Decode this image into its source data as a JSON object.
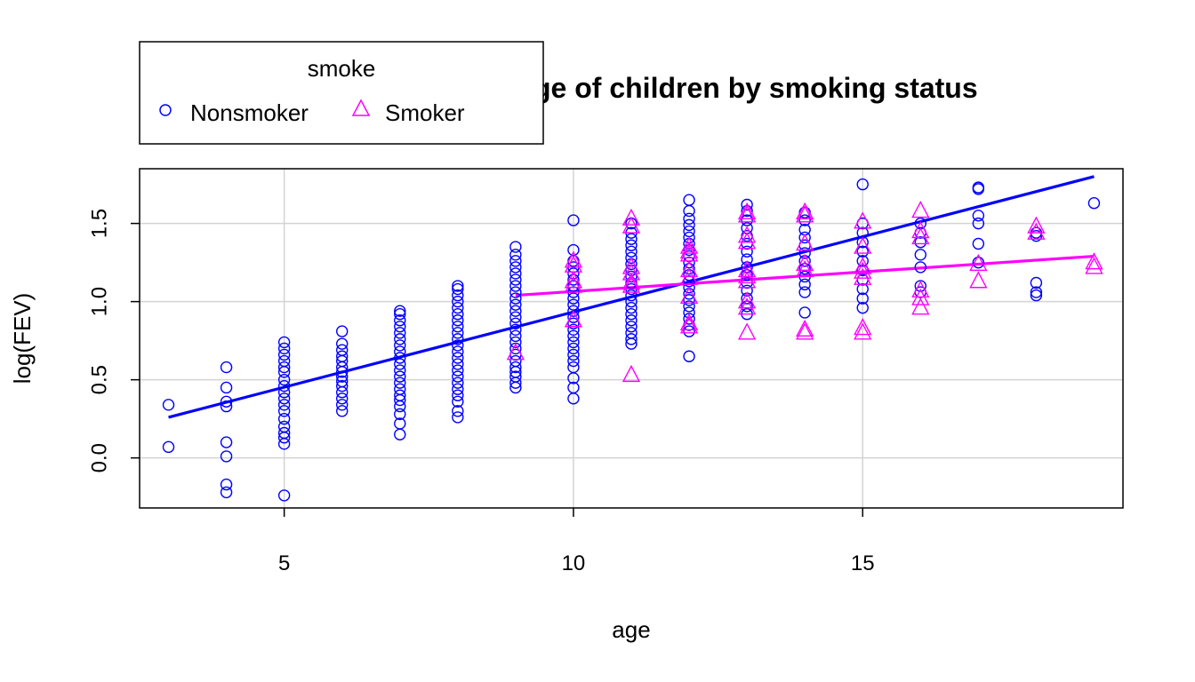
{
  "chart_data": {
    "type": "scatter",
    "title": "ge of children by smoking  status",
    "xlabel": "age",
    "ylabel": "log(FEV)",
    "xlim": [
      2.5,
      19.5
    ],
    "ylim": [
      -0.32,
      1.85
    ],
    "x_ticks": [
      5,
      10,
      15
    ],
    "y_ticks": [
      0.0,
      0.5,
      1.0,
      1.5
    ],
    "x_tick_labels": [
      "5",
      "10",
      "15"
    ],
    "y_tick_labels": [
      "0.0",
      "0.5",
      "1.0",
      "1.5"
    ],
    "grid": true,
    "legend": {
      "title": "smoke",
      "placement": "top-left",
      "entries": [
        "Nonsmoker",
        "Smoker"
      ]
    },
    "series": [
      {
        "name": "Nonsmoker",
        "color": "#0000ff",
        "marker": "circle",
        "fit_line": {
          "x": [
            3,
            19
          ],
          "y": [
            0.26,
            1.8
          ]
        },
        "points": [
          [
            3,
            0.34
          ],
          [
            3,
            0.07
          ],
          [
            4,
            0.58
          ],
          [
            4,
            0.45
          ],
          [
            4,
            0.36
          ],
          [
            4,
            0.33
          ],
          [
            4,
            0.1
          ],
          [
            4,
            0.01
          ],
          [
            4,
            -0.17
          ],
          [
            4,
            -0.22
          ],
          [
            5,
            0.74
          ],
          [
            5,
            0.7
          ],
          [
            5,
            0.66
          ],
          [
            5,
            0.62
          ],
          [
            5,
            0.58
          ],
          [
            5,
            0.55
          ],
          [
            5,
            0.5
          ],
          [
            5,
            0.46
          ],
          [
            5,
            0.42
          ],
          [
            5,
            0.38
          ],
          [
            5,
            0.34
          ],
          [
            5,
            0.3
          ],
          [
            5,
            0.25
          ],
          [
            5,
            0.2
          ],
          [
            5,
            0.16
          ],
          [
            5,
            0.13
          ],
          [
            5,
            0.09
          ],
          [
            5,
            -0.24
          ],
          [
            6,
            0.81
          ],
          [
            6,
            0.73
          ],
          [
            6,
            0.69
          ],
          [
            6,
            0.65
          ],
          [
            6,
            0.62
          ],
          [
            6,
            0.58
          ],
          [
            6,
            0.55
          ],
          [
            6,
            0.52
          ],
          [
            6,
            0.49
          ],
          [
            6,
            0.46
          ],
          [
            6,
            0.42
          ],
          [
            6,
            0.38
          ],
          [
            6,
            0.34
          ],
          [
            6,
            0.3
          ],
          [
            7,
            0.94
          ],
          [
            7,
            0.92
          ],
          [
            7,
            0.88
          ],
          [
            7,
            0.84
          ],
          [
            7,
            0.8
          ],
          [
            7,
            0.76
          ],
          [
            7,
            0.72
          ],
          [
            7,
            0.68
          ],
          [
            7,
            0.64
          ],
          [
            7,
            0.6
          ],
          [
            7,
            0.56
          ],
          [
            7,
            0.52
          ],
          [
            7,
            0.48
          ],
          [
            7,
            0.44
          ],
          [
            7,
            0.4
          ],
          [
            7,
            0.37
          ],
          [
            7,
            0.33
          ],
          [
            7,
            0.28
          ],
          [
            7,
            0.22
          ],
          [
            7,
            0.15
          ],
          [
            8,
            1.1
          ],
          [
            8,
            1.08
          ],
          [
            8,
            1.04
          ],
          [
            8,
            1.0
          ],
          [
            8,
            0.96
          ],
          [
            8,
            0.92
          ],
          [
            8,
            0.88
          ],
          [
            8,
            0.84
          ],
          [
            8,
            0.8
          ],
          [
            8,
            0.76
          ],
          [
            8,
            0.72
          ],
          [
            8,
            0.68
          ],
          [
            8,
            0.64
          ],
          [
            8,
            0.6
          ],
          [
            8,
            0.56
          ],
          [
            8,
            0.52
          ],
          [
            8,
            0.48
          ],
          [
            8,
            0.44
          ],
          [
            8,
            0.4
          ],
          [
            8,
            0.36
          ],
          [
            8,
            0.3
          ],
          [
            8,
            0.26
          ],
          [
            9,
            1.35
          ],
          [
            9,
            1.3
          ],
          [
            9,
            1.26
          ],
          [
            9,
            1.22
          ],
          [
            9,
            1.18
          ],
          [
            9,
            1.14
          ],
          [
            9,
            1.1
          ],
          [
            9,
            1.06
          ],
          [
            9,
            1.02
          ],
          [
            9,
            0.98
          ],
          [
            9,
            0.94
          ],
          [
            9,
            0.9
          ],
          [
            9,
            0.86
          ],
          [
            9,
            0.82
          ],
          [
            9,
            0.78
          ],
          [
            9,
            0.74
          ],
          [
            9,
            0.7
          ],
          [
            9,
            0.66
          ],
          [
            9,
            0.62
          ],
          [
            9,
            0.58
          ],
          [
            9,
            0.55
          ],
          [
            9,
            0.52
          ],
          [
            9,
            0.48
          ],
          [
            9,
            0.45
          ],
          [
            10,
            1.52
          ],
          [
            10,
            1.33
          ],
          [
            10,
            1.26
          ],
          [
            10,
            1.22
          ],
          [
            10,
            1.18
          ],
          [
            10,
            1.14
          ],
          [
            10,
            1.1
          ],
          [
            10,
            1.06
          ],
          [
            10,
            1.02
          ],
          [
            10,
            0.98
          ],
          [
            10,
            0.94
          ],
          [
            10,
            0.9
          ],
          [
            10,
            0.86
          ],
          [
            10,
            0.82
          ],
          [
            10,
            0.78
          ],
          [
            10,
            0.74
          ],
          [
            10,
            0.7
          ],
          [
            10,
            0.66
          ],
          [
            10,
            0.62
          ],
          [
            10,
            0.58
          ],
          [
            10,
            0.51
          ],
          [
            10,
            0.45
          ],
          [
            10,
            0.38
          ],
          [
            11,
            1.5
          ],
          [
            11,
            1.44
          ],
          [
            11,
            1.4
          ],
          [
            11,
            1.36
          ],
          [
            11,
            1.32
          ],
          [
            11,
            1.28
          ],
          [
            11,
            1.24
          ],
          [
            11,
            1.2
          ],
          [
            11,
            1.16
          ],
          [
            11,
            1.12
          ],
          [
            11,
            1.08
          ],
          [
            11,
            1.04
          ],
          [
            11,
            1.0
          ],
          [
            11,
            0.96
          ],
          [
            11,
            0.92
          ],
          [
            11,
            0.88
          ],
          [
            11,
            0.84
          ],
          [
            11,
            0.8
          ],
          [
            11,
            0.76
          ],
          [
            11,
            0.73
          ],
          [
            12,
            1.65
          ],
          [
            12,
            1.58
          ],
          [
            12,
            1.53
          ],
          [
            12,
            1.49
          ],
          [
            12,
            1.45
          ],
          [
            12,
            1.41
          ],
          [
            12,
            1.37
          ],
          [
            12,
            1.33
          ],
          [
            12,
            1.29
          ],
          [
            12,
            1.25
          ],
          [
            12,
            1.21
          ],
          [
            12,
            1.17
          ],
          [
            12,
            1.13
          ],
          [
            12,
            1.09
          ],
          [
            12,
            1.05
          ],
          [
            12,
            1.01
          ],
          [
            12,
            0.97
          ],
          [
            12,
            0.93
          ],
          [
            12,
            0.89
          ],
          [
            12,
            0.85
          ],
          [
            12,
            0.81
          ],
          [
            12,
            0.65
          ],
          [
            13,
            1.62
          ],
          [
            13,
            1.58
          ],
          [
            13,
            1.52
          ],
          [
            13,
            1.47
          ],
          [
            13,
            1.42
          ],
          [
            13,
            1.37
          ],
          [
            13,
            1.32
          ],
          [
            13,
            1.27
          ],
          [
            13,
            1.22
          ],
          [
            13,
            1.17
          ],
          [
            13,
            1.12
          ],
          [
            13,
            1.07
          ],
          [
            13,
            1.02
          ],
          [
            13,
            0.97
          ],
          [
            13,
            0.92
          ],
          [
            14,
            1.57
          ],
          [
            14,
            1.52
          ],
          [
            14,
            1.46
          ],
          [
            14,
            1.41
          ],
          [
            14,
            1.36
          ],
          [
            14,
            1.31
          ],
          [
            14,
            1.26
          ],
          [
            14,
            1.21
          ],
          [
            14,
            1.16
          ],
          [
            14,
            1.11
          ],
          [
            14,
            1.06
          ],
          [
            14,
            0.93
          ],
          [
            15,
            1.75
          ],
          [
            15,
            1.5
          ],
          [
            15,
            1.44
          ],
          [
            15,
            1.38
          ],
          [
            15,
            1.32
          ],
          [
            15,
            1.26
          ],
          [
            15,
            1.2
          ],
          [
            15,
            1.14
          ],
          [
            15,
            1.08
          ],
          [
            15,
            1.02
          ],
          [
            15,
            0.96
          ],
          [
            16,
            1.5
          ],
          [
            16,
            1.44
          ],
          [
            16,
            1.38
          ],
          [
            16,
            1.3
          ],
          [
            16,
            1.22
          ],
          [
            16,
            1.1
          ],
          [
            16,
            1.06
          ],
          [
            17,
            1.73
          ],
          [
            17,
            1.72
          ],
          [
            17,
            1.55
          ],
          [
            17,
            1.5
          ],
          [
            17,
            1.37
          ],
          [
            17,
            1.25
          ],
          [
            18,
            1.44
          ],
          [
            18,
            1.42
          ],
          [
            18,
            1.12
          ],
          [
            18,
            1.06
          ],
          [
            18,
            1.04
          ],
          [
            19,
            1.63
          ]
        ]
      },
      {
        "name": "Smoker",
        "color": "#ff00ff",
        "marker": "triangle",
        "fit_line": {
          "x": [
            9,
            19
          ],
          "y": [
            1.04,
            1.29
          ]
        },
        "points": [
          [
            9,
            0.67
          ],
          [
            10,
            1.26
          ],
          [
            10,
            1.23
          ],
          [
            10,
            1.13
          ],
          [
            10,
            1.1
          ],
          [
            10,
            0.88
          ],
          [
            11,
            1.53
          ],
          [
            11,
            1.48
          ],
          [
            11,
            1.22
          ],
          [
            11,
            1.18
          ],
          [
            11,
            1.12
          ],
          [
            11,
            1.1
          ],
          [
            11,
            0.53
          ],
          [
            12,
            1.35
          ],
          [
            12,
            1.32
          ],
          [
            12,
            1.3
          ],
          [
            12,
            1.2
          ],
          [
            12,
            1.15
          ],
          [
            12,
            1.03
          ],
          [
            12,
            0.86
          ],
          [
            12,
            0.84
          ],
          [
            13,
            1.57
          ],
          [
            13,
            1.55
          ],
          [
            13,
            1.42
          ],
          [
            13,
            1.38
          ],
          [
            13,
            1.2
          ],
          [
            13,
            1.16
          ],
          [
            13,
            1.13
          ],
          [
            13,
            1.0
          ],
          [
            13,
            0.96
          ],
          [
            13,
            0.8
          ],
          [
            14,
            1.57
          ],
          [
            14,
            1.55
          ],
          [
            14,
            1.37
          ],
          [
            14,
            1.24
          ],
          [
            14,
            1.2
          ],
          [
            14,
            0.82
          ],
          [
            14,
            0.8
          ],
          [
            15,
            1.51
          ],
          [
            15,
            1.35
          ],
          [
            15,
            1.22
          ],
          [
            15,
            1.19
          ],
          [
            15,
            1.15
          ],
          [
            15,
            0.83
          ],
          [
            15,
            0.8
          ],
          [
            16,
            1.58
          ],
          [
            16,
            1.45
          ],
          [
            16,
            1.41
          ],
          [
            16,
            1.07
          ],
          [
            16,
            1.02
          ],
          [
            16,
            0.96
          ],
          [
            17,
            1.24
          ],
          [
            17,
            1.13
          ],
          [
            18,
            1.48
          ],
          [
            18,
            1.44
          ],
          [
            19,
            1.25
          ],
          [
            19,
            1.22
          ]
        ]
      }
    ]
  }
}
